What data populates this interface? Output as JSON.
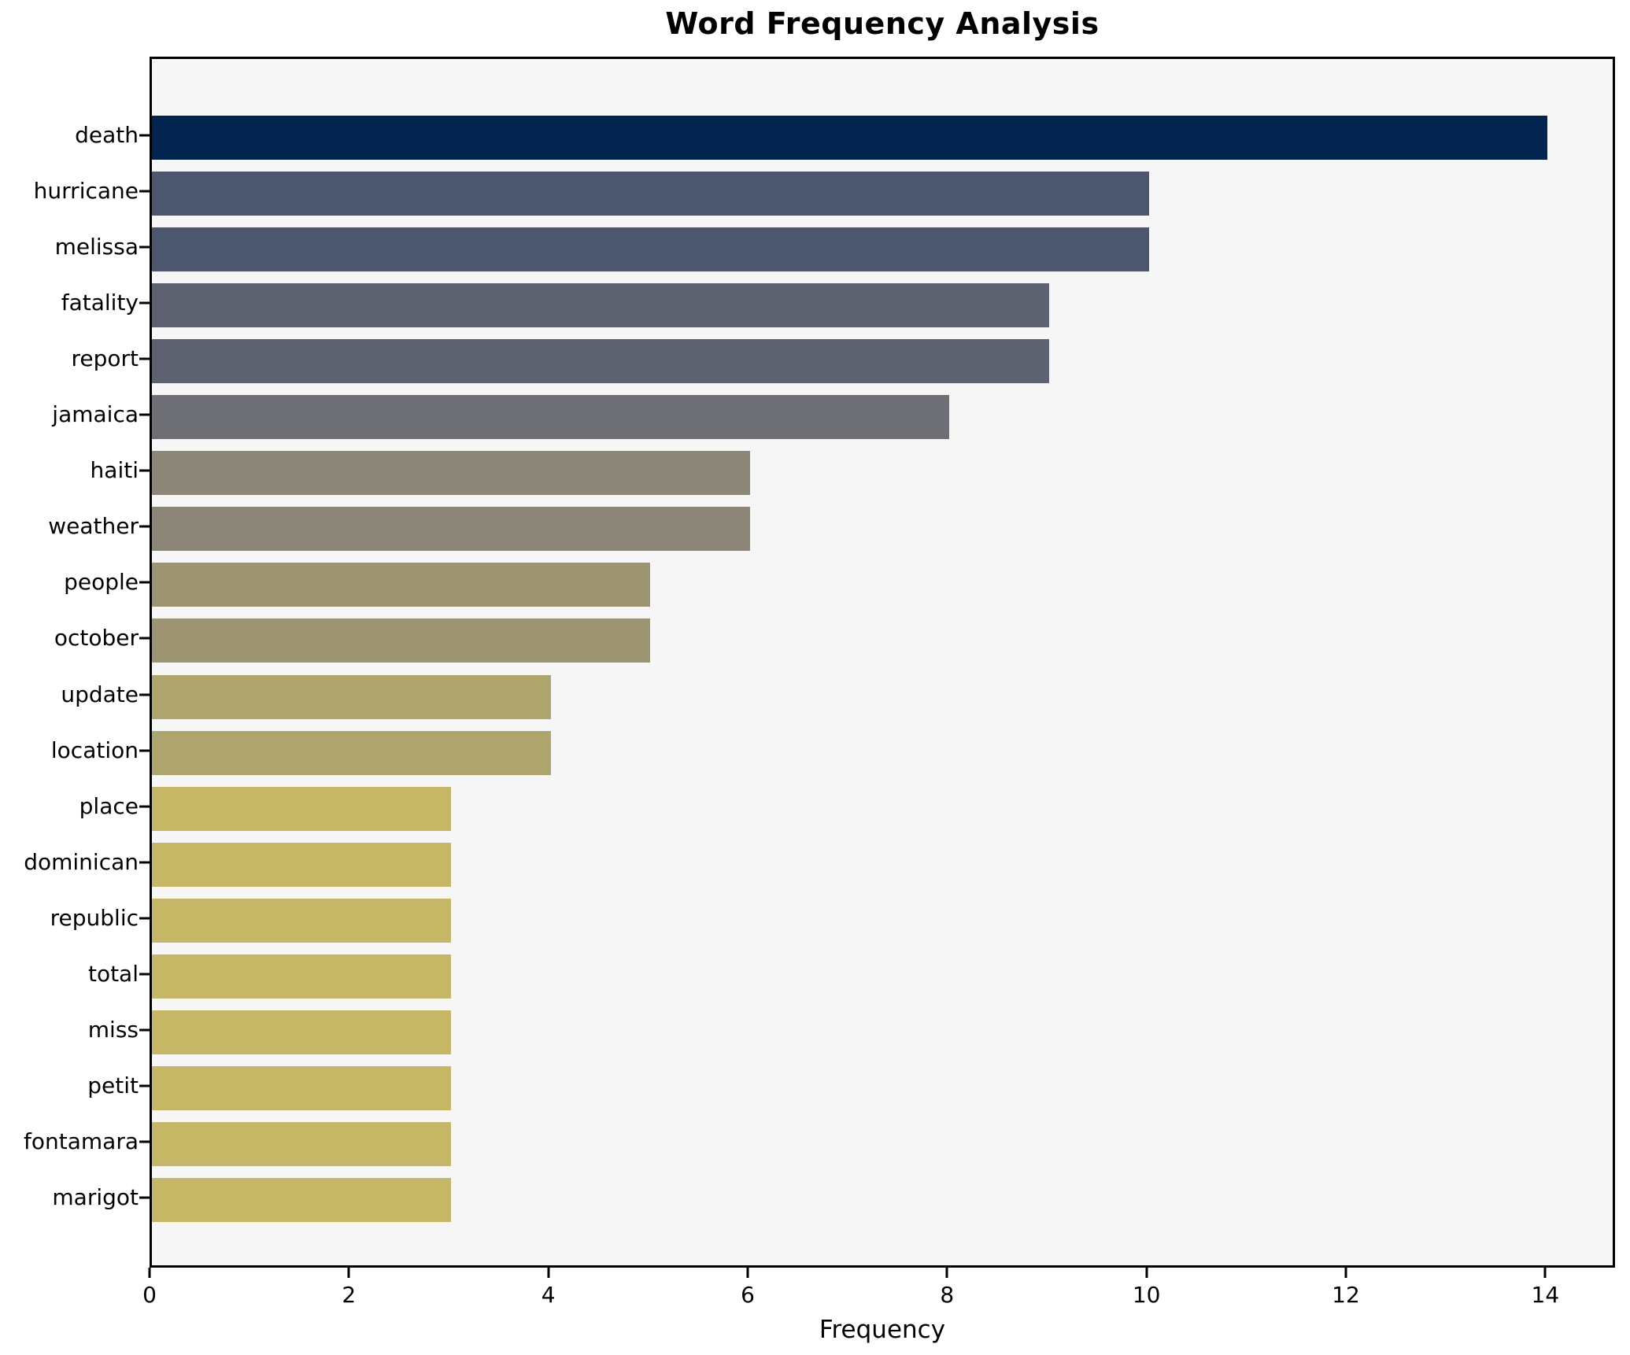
{
  "chart_data": {
    "type": "bar",
    "orientation": "horizontal",
    "title": "Word Frequency Analysis",
    "xlabel": "Frequency",
    "ylabel": "",
    "xlim": [
      0,
      14.7
    ],
    "xticks": [
      0,
      2,
      4,
      6,
      8,
      10,
      12,
      14
    ],
    "grid": false,
    "legend_position": "none",
    "categories": [
      "death",
      "hurricane",
      "melissa",
      "fatality",
      "report",
      "jamaica",
      "haiti",
      "weather",
      "people",
      "october",
      "update",
      "location",
      "place",
      "dominican",
      "republic",
      "total",
      "miss",
      "petit",
      "fontamara",
      "marigot"
    ],
    "values": [
      14,
      10,
      10,
      9,
      9,
      8,
      6,
      6,
      5,
      5,
      4,
      4,
      3,
      3,
      3,
      3,
      3,
      3,
      3,
      3
    ],
    "bar_colors": [
      "#02234d",
      "#4c566e",
      "#4c566e",
      "#5d6170",
      "#5d6170",
      "#6d6f75",
      "#8b8677",
      "#8b8677",
      "#9d9572",
      "#9d9572",
      "#aea56d",
      "#aea56d",
      "#c5b765",
      "#c5b765",
      "#c5b765",
      "#c5b765",
      "#c5b765",
      "#c5b765",
      "#c5b765",
      "#c5b765"
    ],
    "colors": {
      "plot_background": "#f6f6f7",
      "figure_background": "#ffffff",
      "axis": "#000000",
      "text": "#000000"
    }
  }
}
